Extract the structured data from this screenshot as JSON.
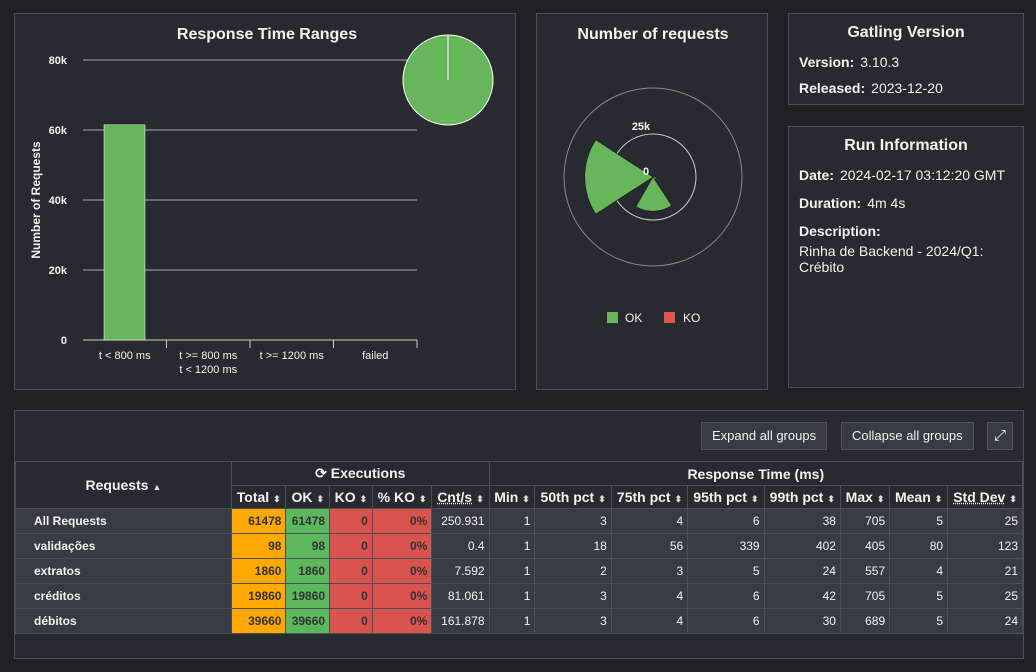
{
  "range_chart": {
    "title": "Response Time Ranges",
    "ylabel": "Number of Requests",
    "yticks": [
      "0",
      "20k",
      "40k",
      "60k",
      "80k"
    ],
    "categories": [
      "t < 800 ms",
      "t >= 800 ms|t < 1200 ms",
      "t >= 1200 ms",
      "failed"
    ],
    "cat1a": "t >= 800 ms",
    "cat1b": "t < 1200 ms",
    "colors": [
      "#68b65c",
      "#ffdd00",
      "#ffa900",
      "#f15b4f"
    ]
  },
  "chart_data": [
    {
      "type": "bar",
      "title": "Response Time Ranges",
      "ylabel": "Number of Requests",
      "categories": [
        "t < 800 ms",
        "t >= 800 ms t < 1200 ms",
        "t >= 1200 ms",
        "failed"
      ],
      "values": [
        61478,
        0,
        0,
        0
      ],
      "ylim": [
        0,
        80000
      ],
      "grid": true
    },
    {
      "type": "pie",
      "values": [
        61478,
        0
      ],
      "labels": [
        "OK",
        "KO"
      ],
      "colors": [
        "#68b65c",
        "#f15b4f"
      ]
    },
    {
      "type": "polar",
      "title": "Number of requests",
      "categories": [
        "validações",
        "extratos",
        "créditos",
        "débitos"
      ],
      "series": [
        {
          "name": "OK",
          "values": [
            98,
            1860,
            19860,
            39660
          ]
        },
        {
          "name": "KO",
          "values": [
            0,
            0,
            0,
            0
          ]
        }
      ],
      "rticks": [
        "0",
        "25k"
      ],
      "legend": "bottom"
    }
  ],
  "requests_chart": {
    "title": "Number of requests",
    "tick0": "0",
    "tick1": "25k",
    "legend": [
      {
        "label": "OK",
        "color": "#68b65c"
      },
      {
        "label": "KO",
        "color": "#f15b4f"
      }
    ]
  },
  "gatling": {
    "title": "Gatling Version",
    "version_label": "Version:",
    "version": "3.10.3",
    "released_label": "Released:",
    "released": "2023-12-20"
  },
  "run": {
    "title": "Run Information",
    "date_label": "Date:",
    "date": "2024-02-17 03:12:20 GMT",
    "duration_label": "Duration:",
    "duration": "4m 4s",
    "desc_label": "Description:",
    "desc": "Rinha de Backend - 2024/Q1: Crébito"
  },
  "table": {
    "expand": "Expand all groups",
    "collapse": "Collapse all groups",
    "requests": "Requests",
    "executions": "Executions",
    "response_time": "Response Time (ms)",
    "cols": [
      "Total",
      "OK",
      "KO",
      "% KO",
      "Cnt/s",
      "Min",
      "50th pct",
      "75th pct",
      "95th pct",
      "99th pct",
      "Max",
      "Mean",
      "Std Dev"
    ],
    "rows": [
      [
        "All Requests",
        "61478",
        "61478",
        "0",
        "0%",
        "250.931",
        "1",
        "3",
        "4",
        "6",
        "38",
        "705",
        "5",
        "25"
      ],
      [
        "validações",
        "98",
        "98",
        "0",
        "0%",
        "0.4",
        "1",
        "18",
        "56",
        "339",
        "402",
        "405",
        "80",
        "123"
      ],
      [
        "extratos",
        "1860",
        "1860",
        "0",
        "0%",
        "7.592",
        "1",
        "2",
        "3",
        "5",
        "24",
        "557",
        "4",
        "21"
      ],
      [
        "créditos",
        "19860",
        "19860",
        "0",
        "0%",
        "81.061",
        "1",
        "3",
        "4",
        "6",
        "42",
        "705",
        "5",
        "25"
      ],
      [
        "débitos",
        "39660",
        "39660",
        "0",
        "0%",
        "161.878",
        "1",
        "3",
        "4",
        "6",
        "30",
        "689",
        "5",
        "24"
      ]
    ]
  }
}
